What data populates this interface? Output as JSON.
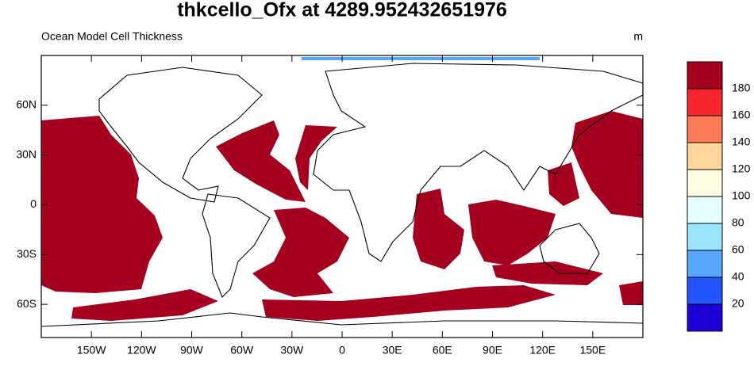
{
  "title": "thkcello_Ofx at 4289.952432651976",
  "subtitle_left": "Ocean Model Cell Thickness",
  "subtitle_right": "m",
  "map": {
    "xlim": [
      -180,
      180
    ],
    "ylim": [
      -80,
      90
    ],
    "xticks": [
      {
        "value": -150,
        "label": "150W"
      },
      {
        "value": -120,
        "label": "120W"
      },
      {
        "value": -90,
        "label": "90W"
      },
      {
        "value": -60,
        "label": "60W"
      },
      {
        "value": -30,
        "label": "30W"
      },
      0,
      {
        "value": 30,
        "label": "30E"
      },
      {
        "value": 60,
        "label": "60E"
      },
      {
        "value": 90,
        "label": "90E"
      },
      {
        "value": 120,
        "label": "120E"
      },
      {
        "value": 150,
        "label": "150E"
      }
    ],
    "yticks": [
      {
        "value": 60,
        "label": "60N"
      },
      {
        "value": 30,
        "label": "30N"
      },
      0,
      {
        "value": -30,
        "label": "30S"
      },
      {
        "value": -60,
        "label": "60S"
      }
    ]
  },
  "colorbar": {
    "levels": [
      20,
      40,
      60,
      80,
      100,
      120,
      140,
      160,
      180
    ],
    "colors": [
      "#1d00d5",
      "#2255ff",
      "#56a5ff",
      "#99e4ff",
      "#e3ffff",
      "#fffde0",
      "#ffd699",
      "#ff7b55",
      "#f8252e",
      "#a5001f"
    ]
  }
}
